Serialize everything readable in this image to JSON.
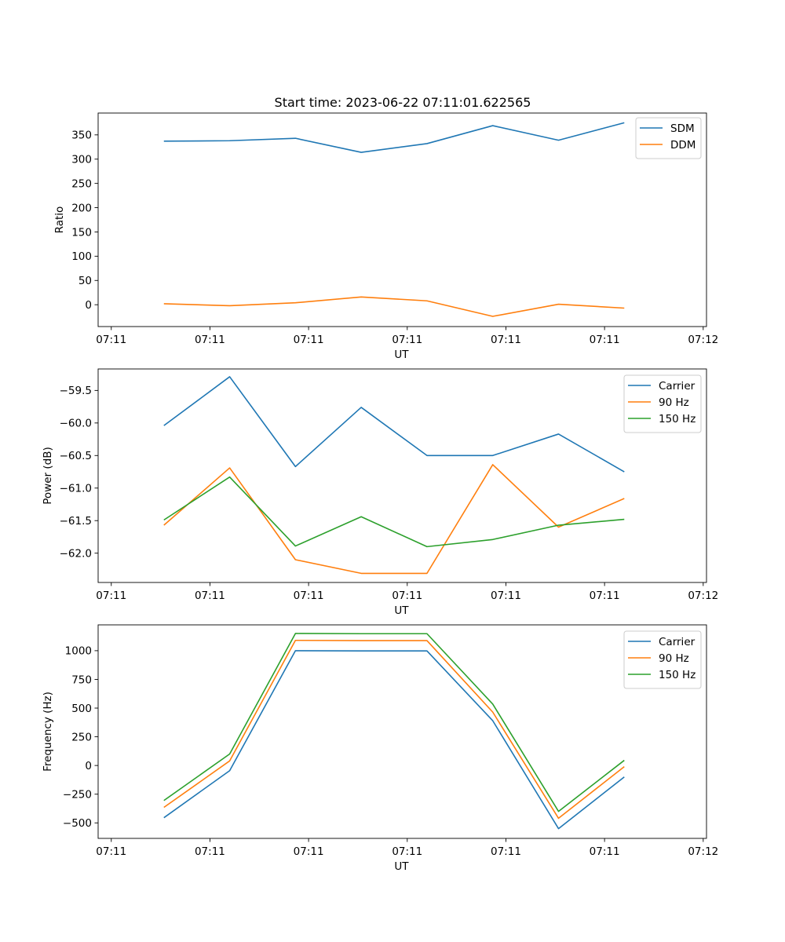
{
  "figure": {
    "title": "Start time: 2023-06-22 07:11:01.622565"
  },
  "colors": {
    "blue": "#1f77b4",
    "orange": "#ff7f0e",
    "green": "#2ca02c"
  },
  "chart_data": [
    {
      "type": "line",
      "title": "Start time: 2023-06-22 07:11:01.622565",
      "xlabel": "UT",
      "ylabel": "Ratio",
      "x": [
        1,
        2,
        3,
        4,
        5,
        6,
        7,
        8
      ],
      "xlim": [
        0,
        9.25
      ],
      "xtick_positions": [
        0.2,
        1.7,
        3.2,
        4.7,
        6.2,
        7.7,
        9.2
      ],
      "xtick_labels": [
        "07:11",
        "07:11",
        "07:11",
        "07:11",
        "07:11",
        "07:11",
        "07:12"
      ],
      "ylim": [
        -45,
        395
      ],
      "yticks": [
        0,
        50,
        100,
        150,
        200,
        250,
        300,
        350
      ],
      "series": [
        {
          "name": "SDM",
          "color": "#1f77b4",
          "values": [
            337,
            338,
            343,
            314,
            332,
            369,
            339,
            375
          ]
        },
        {
          "name": "DDM",
          "color": "#ff7f0e",
          "values": [
            2,
            -2,
            4,
            16,
            8,
            -24,
            1,
            -7
          ]
        }
      ],
      "legend": "top-right",
      "grid": false
    },
    {
      "type": "line",
      "title": "",
      "xlabel": "UT",
      "ylabel": "Power (dB)",
      "x": [
        1,
        2,
        3,
        4,
        5,
        6,
        7,
        8
      ],
      "xlim": [
        0,
        9.25
      ],
      "xtick_positions": [
        0.2,
        1.7,
        3.2,
        4.7,
        6.2,
        7.7,
        9.2
      ],
      "xtick_labels": [
        "07:11",
        "07:11",
        "07:11",
        "07:11",
        "07:11",
        "07:11",
        "07:12"
      ],
      "ylim": [
        -62.45,
        -59.17
      ],
      "yticks": [
        -62.0,
        -61.5,
        -61.0,
        -60.5,
        -60.0,
        -59.5
      ],
      "ytick_labels": [
        "−62.0",
        "−61.5",
        "−61.0",
        "−60.5",
        "−60.0",
        "−59.5"
      ],
      "series": [
        {
          "name": "Carrier",
          "color": "#1f77b4",
          "values": [
            -60.04,
            -59.29,
            -60.67,
            -59.76,
            -60.5,
            -60.5,
            -60.17,
            -60.75
          ]
        },
        {
          "name": "90 Hz",
          "color": "#ff7f0e",
          "values": [
            -61.57,
            -60.69,
            -62.1,
            -62.31,
            -62.31,
            -60.64,
            -61.6,
            -61.16
          ]
        },
        {
          "name": "150 Hz",
          "color": "#2ca02c",
          "values": [
            -61.49,
            -60.83,
            -61.89,
            -61.44,
            -61.9,
            -61.79,
            -61.57,
            -61.48
          ]
        }
      ],
      "legend": "top-right",
      "grid": false
    },
    {
      "type": "line",
      "title": "",
      "xlabel": "UT",
      "ylabel": "Frequency (Hz)",
      "x": [
        1,
        2,
        3,
        4,
        5,
        6,
        7,
        8
      ],
      "xlim": [
        0,
        9.25
      ],
      "xtick_positions": [
        0.2,
        1.7,
        3.2,
        4.7,
        6.2,
        7.7,
        9.2
      ],
      "xtick_labels": [
        "07:11",
        "07:11",
        "07:11",
        "07:11",
        "07:11",
        "07:11",
        "07:12"
      ],
      "ylim": [
        -635,
        1225
      ],
      "yticks": [
        -500,
        -250,
        0,
        250,
        500,
        750,
        1000
      ],
      "ytick_labels": [
        "−500",
        "−250",
        "0",
        "250",
        "500",
        "750",
        "1000"
      ],
      "series": [
        {
          "name": "Carrier",
          "color": "#1f77b4",
          "values": [
            -455,
            -45,
            1000,
            998,
            998,
            390,
            -550,
            -100
          ]
        },
        {
          "name": "90 Hz",
          "color": "#ff7f0e",
          "values": [
            -365,
            40,
            1090,
            1088,
            1088,
            465,
            -460,
            -10
          ]
        },
        {
          "name": "150 Hz",
          "color": "#2ca02c",
          "values": [
            -305,
            100,
            1150,
            1148,
            1148,
            535,
            -400,
            45
          ]
        }
      ],
      "legend": "top-right",
      "grid": false
    }
  ]
}
